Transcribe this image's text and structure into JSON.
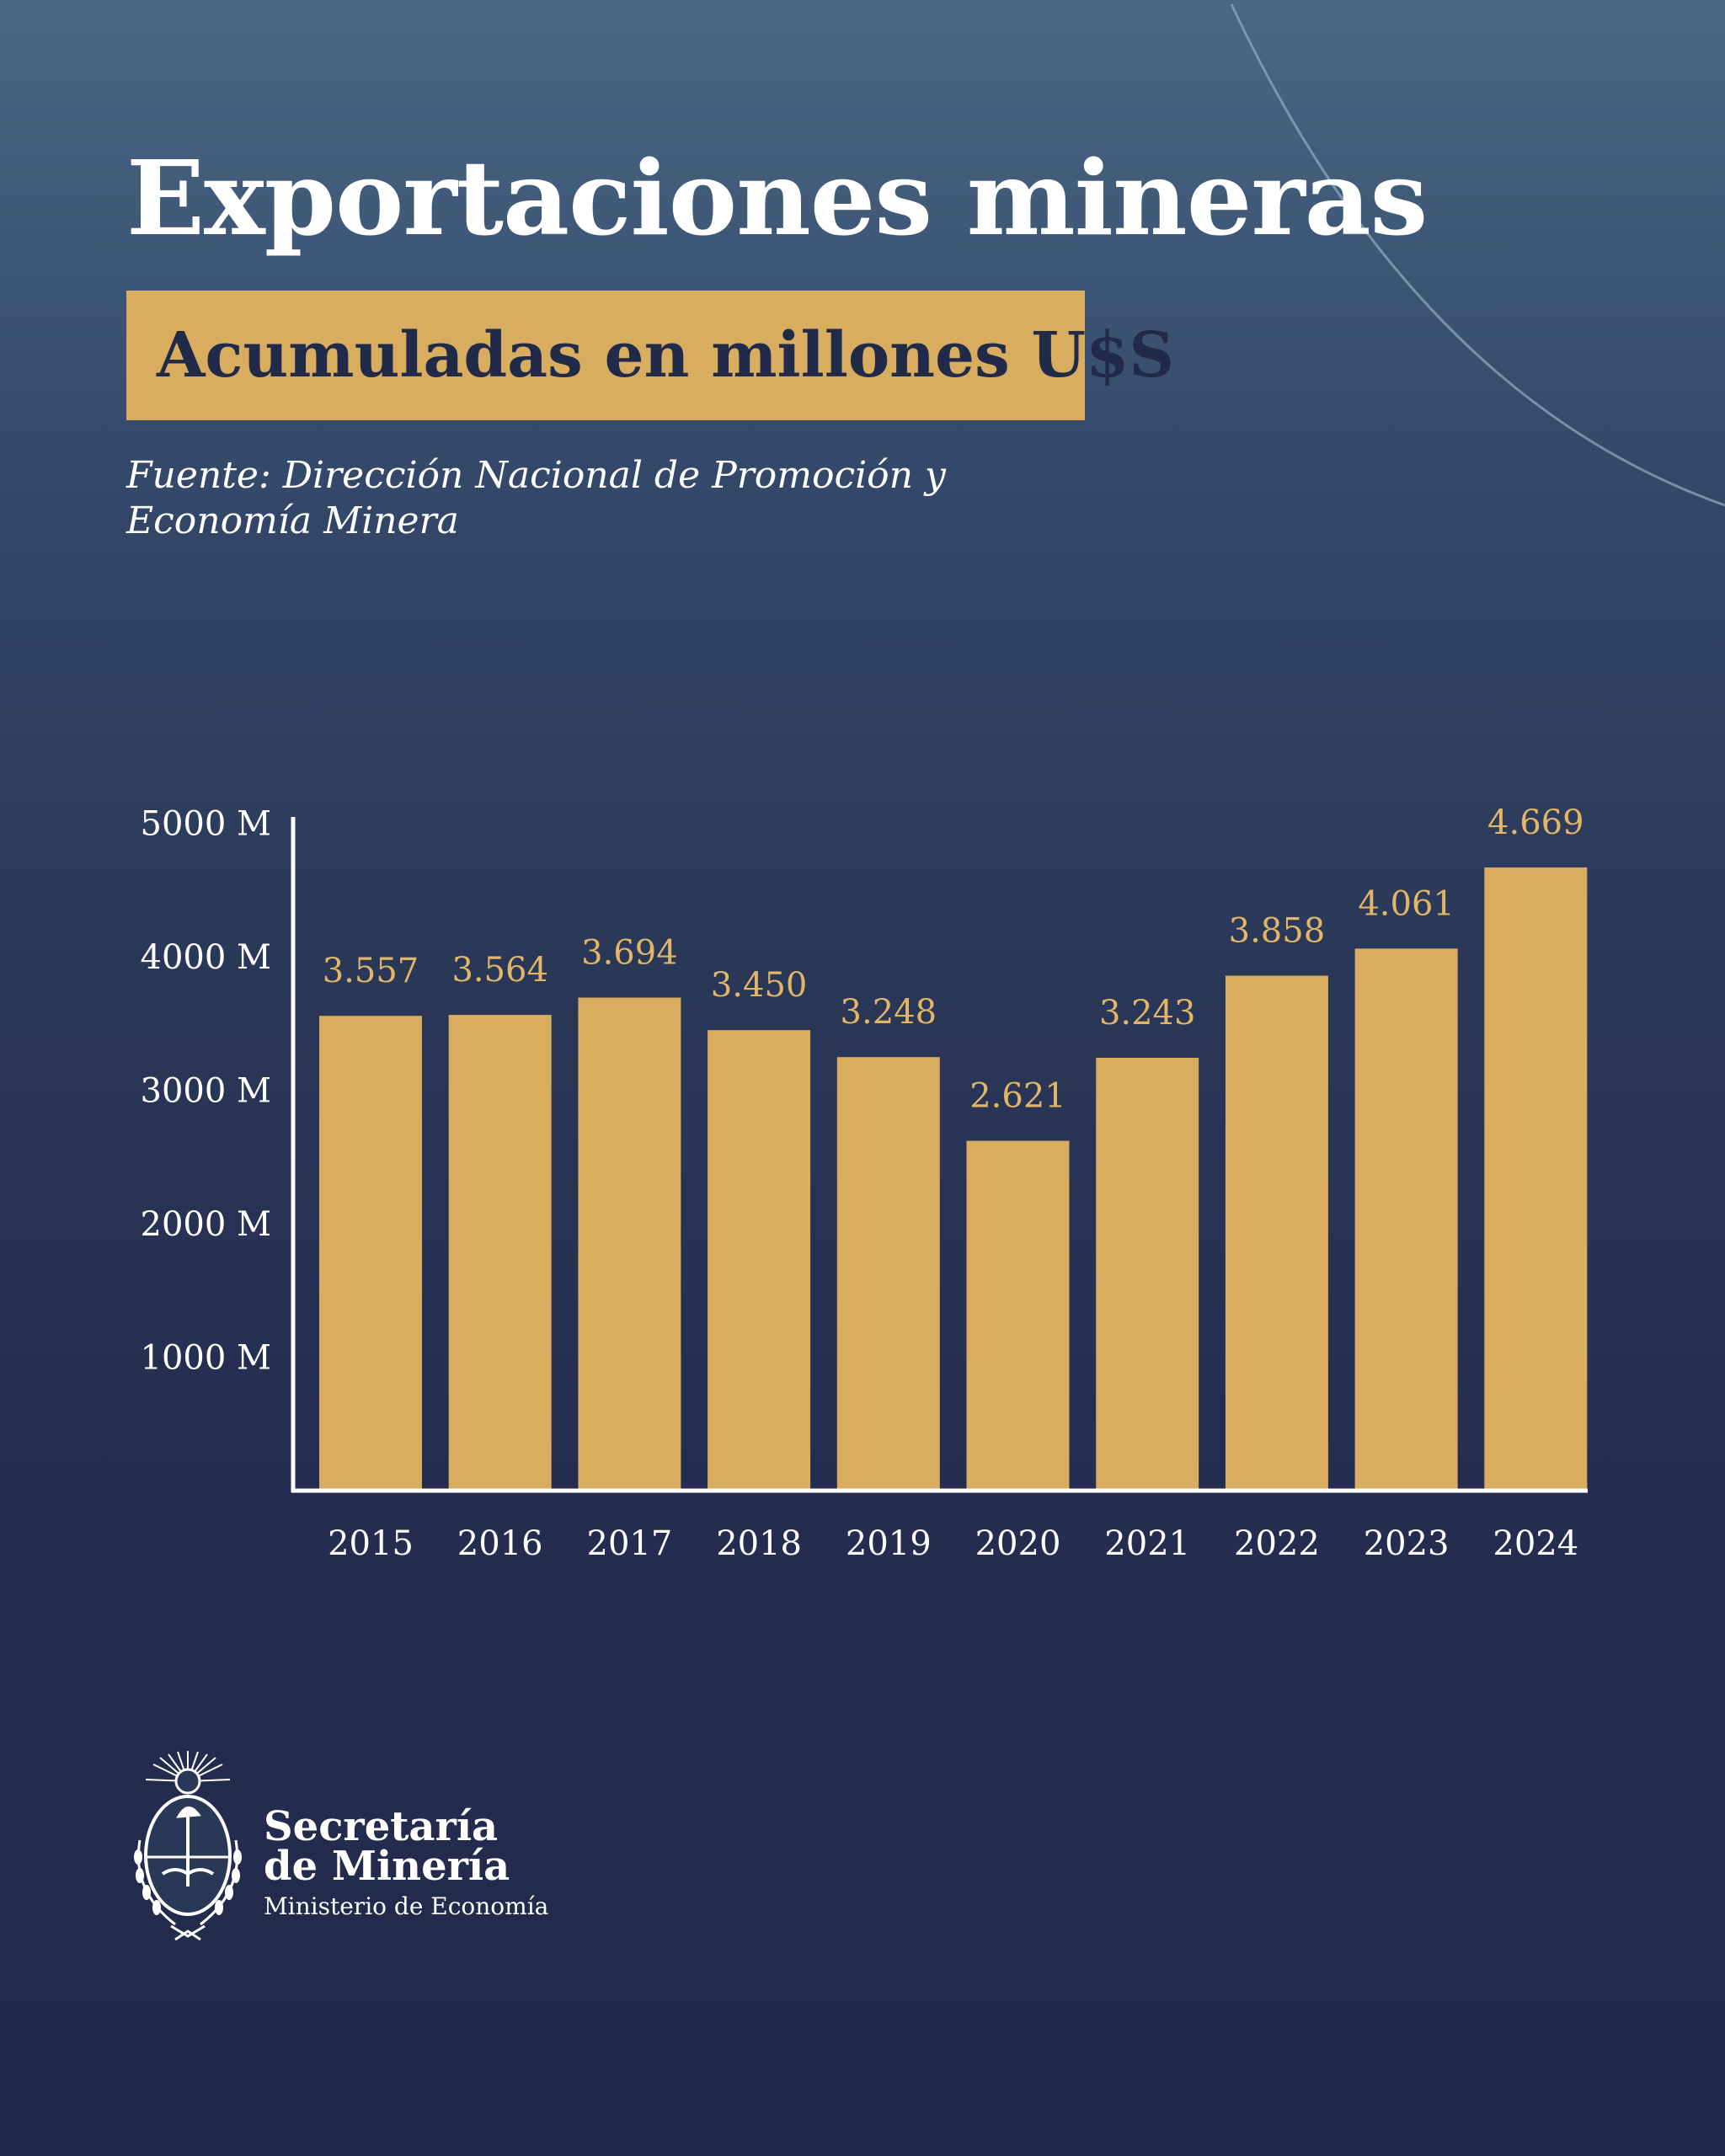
{
  "header": {
    "title": "Exportaciones mineras",
    "subtitle": "Acumuladas en millones U$S",
    "source_line1": "Fuente: Dirección Nacional de Promoción y",
    "source_line2": "Economía Minera"
  },
  "colors": {
    "bar": "#d9ad60",
    "label": "#e3b567",
    "axis": "#ffffff",
    "background_top": "#4a6884",
    "background_bottom": "#222a4c"
  },
  "chart_data": {
    "type": "bar",
    "title": "Exportaciones mineras",
    "subtitle": "Acumuladas en millones U$S",
    "categories": [
      "2015",
      "2016",
      "2017",
      "2018",
      "2019",
      "2020",
      "2021",
      "2022",
      "2023",
      "2024"
    ],
    "values": [
      3557,
      3564,
      3694,
      3450,
      3248,
      2621,
      3243,
      3858,
      4061,
      4669
    ],
    "value_labels": [
      "3.557",
      "3.564",
      "3.694",
      "3.450",
      "3.248",
      "2.621",
      "3.243",
      "3.858",
      "4.061",
      "4.669"
    ],
    "ytick_values": [
      1000,
      2000,
      3000,
      4000,
      5000
    ],
    "ytick_labels": [
      "1000 M",
      "2000 M",
      "3000 M",
      "4000 M",
      "5000 M"
    ],
    "ylim": [
      0,
      5000
    ],
    "xlabel": "",
    "ylabel": "",
    "grid": false,
    "legend": "none"
  },
  "footer": {
    "org_line1": "Secretaría",
    "org_line2": "de Minería",
    "org_line3": "Ministerio de Economía"
  }
}
